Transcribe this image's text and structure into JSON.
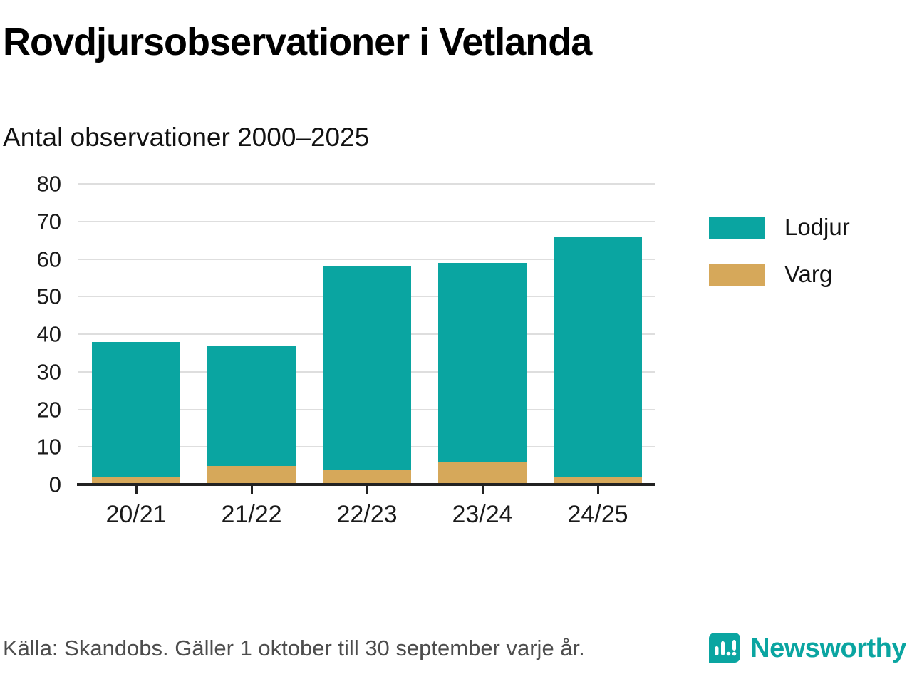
{
  "header": {
    "title": "Rovdjursobservationer i Vetlanda",
    "subtitle": "Antal observationer 2000–2025"
  },
  "chart_data": {
    "type": "bar",
    "stacked": true,
    "title": "Rovdjursobservationer i Vetlanda",
    "subtitle": "Antal observationer 2000–2025",
    "categories": [
      "20/21",
      "21/22",
      "22/23",
      "23/24",
      "24/25"
    ],
    "series": [
      {
        "name": "Varg",
        "color": "#d6a85a",
        "values": [
          2,
          5,
          4,
          6,
          2
        ]
      },
      {
        "name": "Lodjur",
        "color": "#0aa5a1",
        "values": [
          36,
          32,
          54,
          53,
          64
        ]
      }
    ],
    "totals": [
      38,
      37,
      58,
      59,
      66
    ],
    "xlabel": "",
    "ylabel": "",
    "ylim": [
      0,
      80
    ],
    "yticks": [
      0,
      10,
      20,
      30,
      40,
      50,
      60,
      70,
      80
    ],
    "grid": true,
    "legend_position": "right"
  },
  "legend": {
    "items": [
      {
        "label": "Lodjur",
        "color": "#0aa5a1"
      },
      {
        "label": "Varg",
        "color": "#d6a85a"
      }
    ]
  },
  "footer": {
    "source": "Källa: Skandobs. Gäller 1 oktober till 30 september varje år.",
    "brand": "Newsworthy"
  },
  "colors": {
    "teal": "#0aa5a1",
    "gold": "#d6a85a",
    "grid": "#dedede",
    "axis": "#222222"
  }
}
